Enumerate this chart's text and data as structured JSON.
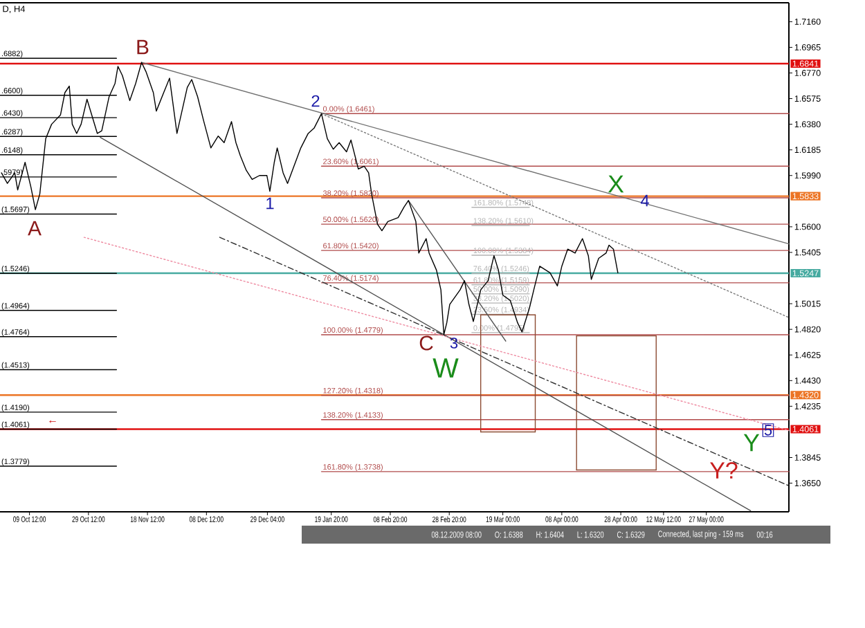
{
  "chart_data": {
    "type": "line",
    "title": "D, H4",
    "xlim": [
      "2009-09-29T12:00",
      "2010-06-24T00:00"
    ],
    "ylim": [
      1.3432,
      1.7304
    ],
    "xticks": [
      {
        "value": "2009-10-09T12:00",
        "label": "09 Oct 12:00"
      },
      {
        "value": "2009-10-29T12:00",
        "label": "29 Oct 12:00"
      },
      {
        "value": "2009-11-18T12:00",
        "label": "18 Nov 12:00"
      },
      {
        "value": "2009-12-08T12:00",
        "label": "08 Dec 12:00"
      },
      {
        "value": "2009-12-29T04:00",
        "label": "29 Dec 04:00"
      },
      {
        "value": "2010-01-19T20:00",
        "label": "19 Jan 20:00"
      },
      {
        "value": "2010-02-08T20:00",
        "label": "08 Feb 20:00"
      },
      {
        "value": "2010-02-28T20:00",
        "label": "28 Feb 20:00"
      },
      {
        "value": "2010-03-19T00:00",
        "label": "19 Mar 00:00"
      },
      {
        "value": "2010-04-08T00:00",
        "label": "08 Apr 00:00"
      },
      {
        "value": "2010-04-28T00:00",
        "label": "28 Apr 00:00"
      },
      {
        "value": "2010-05-12T12:00",
        "label": "12 May 12:00"
      },
      {
        "value": "2010-05-27T00:00",
        "label": "27 May 00:00"
      }
    ],
    "yticks": [
      {
        "value": 1.716,
        "label": "1.7160"
      },
      {
        "value": 1.6965,
        "label": "1.6965"
      },
      {
        "value": 1.677,
        "label": "1.6770"
      },
      {
        "value": 1.6575,
        "label": "1.6575"
      },
      {
        "value": 1.638,
        "label": "1.6380"
      },
      {
        "value": 1.6185,
        "label": "1.6185"
      },
      {
        "value": 1.599,
        "label": "1.5990"
      },
      {
        "value": 1.56,
        "label": "1.5600"
      },
      {
        "value": 1.5405,
        "label": "1.5405"
      },
      {
        "value": 1.5015,
        "label": "1.5015"
      },
      {
        "value": 1.482,
        "label": "1.4820"
      },
      {
        "value": 1.4625,
        "label": "1.4625"
      },
      {
        "value": 1.443,
        "label": "1.4430"
      },
      {
        "value": 1.4235,
        "label": "1.4235"
      },
      {
        "value": 1.3845,
        "label": "1.3845"
      },
      {
        "value": 1.365,
        "label": "1.3650"
      }
    ],
    "series": [
      {
        "name": "0.00% (1.6461)",
        "color": "#b04a4a",
        "x": [
          "2010-01-16T12:00",
          "2010-06-24T00:00"
        ],
        "values": [
          1.6461,
          1.6461
        ]
      },
      {
        "name": "23.60% (1.6061)",
        "color": "#b04a4a",
        "x": [
          "2010-01-16T12:00",
          "2010-06-24T00:00"
        ],
        "values": [
          1.6061,
          1.6061
        ]
      },
      {
        "name": "38.20% (1.5820)",
        "color": "#b04a4a",
        "x": [
          "2010-01-16T12:00",
          "2010-06-24T00:00"
        ],
        "values": [
          1.582,
          1.582
        ]
      },
      {
        "name": "50.00% (1.5620)",
        "color": "#b04a4a",
        "x": [
          "2010-01-16T12:00",
          "2010-06-24T00:00"
        ],
        "values": [
          1.562,
          1.562
        ]
      },
      {
        "name": "61.80% (1.5420)",
        "color": "#b04a4a",
        "x": [
          "2010-01-16T12:00",
          "2010-06-24T00:00"
        ],
        "values": [
          1.542,
          1.542
        ]
      },
      {
        "name": "76.40% (1.5174)",
        "color": "#b04a4a",
        "x": [
          "2010-01-16T12:00",
          "2010-06-24T00:00"
        ],
        "values": [
          1.5174,
          1.5174
        ]
      },
      {
        "name": "100.00% (1.4779)",
        "color": "#b04a4a",
        "x": [
          "2010-01-16T12:00",
          "2010-06-24T00:00"
        ],
        "values": [
          1.4779,
          1.4779
        ]
      },
      {
        "name": "127.20% (1.4318)",
        "color": "#b04a4a",
        "x": [
          "2010-01-16T12:00",
          "2010-06-24T00:00"
        ],
        "values": [
          1.4318,
          1.4318
        ]
      },
      {
        "name": "138.20% (1.4133)",
        "color": "#b04a4a",
        "x": [
          "2010-01-16T12:00",
          "2010-06-24T00:00"
        ],
        "values": [
          1.4133,
          1.4133
        ]
      },
      {
        "name": "161.80% (1.3738)",
        "color": "#b04a4a",
        "x": [
          "2010-01-16T12:00",
          "2010-06-24T00:00"
        ],
        "values": [
          1.3738,
          1.3738
        ]
      },
      {
        "name": ".6882)",
        "color": "#000000",
        "x": [
          "2009-09-29T12:00",
          "2009-11-08T00:00"
        ],
        "values": [
          1.6882,
          1.6882
        ]
      },
      {
        "name": ".6600)",
        "color": "#000000",
        "x": [
          "2009-09-29T12:00",
          "2009-11-08T00:00"
        ],
        "values": [
          1.66,
          1.66
        ]
      },
      {
        "name": ".6430)",
        "color": "#000000",
        "x": [
          "2009-09-29T12:00",
          "2009-11-08T00:00"
        ],
        "values": [
          1.643,
          1.643
        ]
      },
      {
        "name": ".6287)",
        "color": "#000000",
        "x": [
          "2009-09-29T12:00",
          "2009-11-08T00:00"
        ],
        "values": [
          1.6287,
          1.6287
        ]
      },
      {
        "name": ".6148)",
        "color": "#000000",
        "x": [
          "2009-09-29T12:00",
          "2009-11-08T00:00"
        ],
        "values": [
          1.6148,
          1.6148
        ]
      },
      {
        "name": ".5979)",
        "color": "#000000",
        "x": [
          "2009-09-29T12:00",
          "2009-11-08T00:00"
        ],
        "values": [
          1.5979,
          1.5979
        ]
      },
      {
        "name": "(1.5697)",
        "color": "#000000",
        "x": [
          "2009-09-29T12:00",
          "2009-11-08T00:00"
        ],
        "values": [
          1.5697,
          1.5697
        ]
      },
      {
        "name": "(1.5246)",
        "color": "#000000",
        "x": [
          "2009-09-29T12:00",
          "2009-11-08T00:00"
        ],
        "values": [
          1.5246,
          1.5246
        ]
      },
      {
        "name": "(1.4964)",
        "color": "#000000",
        "x": [
          "2009-09-29T12:00",
          "2009-11-08T00:00"
        ],
        "values": [
          1.4964,
          1.4964
        ]
      },
      {
        "name": "(1.4764)",
        "color": "#000000",
        "x": [
          "2009-09-29T12:00",
          "2009-11-08T00:00"
        ],
        "values": [
          1.4764,
          1.4764
        ]
      },
      {
        "name": "(1.4513)",
        "color": "#000000",
        "x": [
          "2009-09-29T12:00",
          "2009-11-08T00:00"
        ],
        "values": [
          1.4513,
          1.4513
        ]
      },
      {
        "name": "(1.4190)",
        "color": "#000000",
        "x": [
          "2009-09-29T12:00",
          "2009-11-08T00:00"
        ],
        "values": [
          1.419,
          1.419
        ]
      },
      {
        "name": "(1.4061)",
        "color": "#000000",
        "x": [
          "2009-09-29T12:00",
          "2009-11-08T00:00"
        ],
        "values": [
          1.4061,
          1.4061
        ]
      },
      {
        "name": "(1.3779)",
        "color": "#000000",
        "x": [
          "2009-09-29T12:00",
          "2009-11-08T00:00"
        ],
        "values": [
          1.3779,
          1.3779
        ]
      },
      {
        "name": "161.80% (1.5748)",
        "color": "#b4b4b4",
        "x": [
          "2010-03-08T12:00",
          "2010-03-28T00:00"
        ],
        "values": [
          1.5748,
          1.5748
        ]
      },
      {
        "name": "138.20% (1.5610)",
        "color": "#b4b4b4",
        "x": [
          "2010-03-08T12:00",
          "2010-03-28T00:00"
        ],
        "values": [
          1.561,
          1.561
        ]
      },
      {
        "name": "100.00% (1.5384)",
        "color": "#b4b4b4",
        "x": [
          "2010-03-08T12:00",
          "2010-03-28T00:00"
        ],
        "values": [
          1.5384,
          1.5384
        ]
      },
      {
        "name": "76.40% (1.5246)",
        "color": "#b4b4b4",
        "x": [
          "2010-03-08T12:00",
          "2010-03-28T00:00"
        ],
        "values": [
          1.5246,
          1.5246
        ]
      },
      {
        "name": "61.80% (1.5159)",
        "color": "#b4b4b4",
        "x": [
          "2010-03-08T12:00",
          "2010-03-28T00:00"
        ],
        "values": [
          1.5159,
          1.5159
        ]
      },
      {
        "name": "50.00% (1.5090)",
        "color": "#b4b4b4",
        "x": [
          "2010-03-08T12:00",
          "2010-03-28T00:00"
        ],
        "values": [
          1.509,
          1.509
        ]
      },
      {
        "name": "38.20% (1.5020)",
        "color": "#b4b4b4",
        "x": [
          "2010-03-08T12:00",
          "2010-03-28T00:00"
        ],
        "values": [
          1.502,
          1.502
        ]
      },
      {
        "name": "23.60% (1.4934)",
        "color": "#b4b4b4",
        "x": [
          "2010-03-08T12:00",
          "2010-03-28T00:00"
        ],
        "values": [
          1.4934,
          1.4934
        ]
      },
      {
        "name": "0.00% (1.4795)",
        "color": "#b4b4b4",
        "x": [
          "2010-03-08T12:00",
          "2010-03-28T00:00"
        ],
        "values": [
          1.4795,
          1.4795
        ]
      },
      {
        "color": "#8c4b32",
        "x": [
          "2010-03-11T12:00",
          "2010-03-30T00:00"
        ],
        "values": [
          1.493,
          1.493
        ]
      },
      {
        "color": "#8c4b32",
        "x": [
          "2010-03-11T12:00",
          "2010-03-30T00:00"
        ],
        "values": [
          1.404,
          1.404
        ]
      },
      {
        "color": "#8c4b32",
        "x": [
          "2010-03-11T12:00",
          "2010-03-11T12:00"
        ],
        "values": [
          1.493,
          1.404
        ]
      },
      {
        "color": "#8c4b32",
        "x": [
          "2010-03-30T00:00",
          "2010-03-30T00:00"
        ],
        "values": [
          1.493,
          1.404
        ]
      },
      {
        "color": "#8c4b32",
        "x": [
          "2010-04-13T00:00",
          "2010-05-10T00:00"
        ],
        "values": [
          1.477,
          1.477
        ]
      },
      {
        "color": "#8c4b32",
        "x": [
          "2010-04-13T00:00",
          "2010-05-10T00:00"
        ],
        "values": [
          1.375,
          1.375
        ]
      },
      {
        "color": "#8c4b32",
        "x": [
          "2010-04-13T00:00",
          "2010-04-13T00:00"
        ],
        "values": [
          1.477,
          1.375
        ]
      },
      {
        "color": "#8c4b32",
        "x": [
          "2010-05-10T00:00",
          "2010-05-10T00:00"
        ],
        "values": [
          1.477,
          1.375
        ]
      },
      {
        "color": "#707070",
        "x": [
          "2009-11-16T12:00",
          "2010-06-24T00:00"
        ],
        "values": [
          1.685,
          1.547
        ]
      },
      {
        "color": "#787878",
        "line_style": "dotted",
        "x": [
          "2010-01-16T12:00",
          "2010-06-24T00:00"
        ],
        "values": [
          1.646,
          1.491
        ]
      },
      {
        "color": "#505050",
        "x": [
          "2009-11-02T12:00",
          "2010-06-11T00:00"
        ],
        "values": [
          1.628,
          1.344
        ]
      },
      {
        "color": "#585858",
        "x": [
          "2010-02-15T00:00",
          "2010-03-20T00:00"
        ],
        "values": [
          1.58,
          1.473
        ]
      },
      {
        "color": "#303030",
        "line_style": "dashed",
        "x": [
          "2009-12-13T00:00",
          "2010-06-24T00:00"
        ],
        "values": [
          1.552,
          1.363
        ]
      },
      {
        "color": "#ee8aa0",
        "line_style": "dotted",
        "x": [
          "2009-10-28T00:00",
          "2010-06-24T00:00"
        ],
        "values": [
          1.552,
          1.405
        ]
      },
      {
        "color": "#000000",
        "x": [
          "2009-09-30T00:00",
          "2009-10-02T00:00",
          "2009-10-04T12:00",
          "2009-10-05T12:00",
          "2009-10-08T00:00",
          "2009-10-10T00:00",
          "2009-10-11T12:00",
          "2009-10-13T00:00",
          "2009-10-14T00:00",
          "2009-10-15T00:00",
          "2009-10-17T00:00",
          "2009-10-20T00:00",
          "2009-10-21T12:00",
          "2009-10-23T00:00",
          "2009-10-24T00:00",
          "2009-10-25T12:00",
          "2009-10-27T00:00",
          "2009-10-29T00:00",
          "2009-11-01T12:00",
          "2009-11-03T00:00",
          "2009-11-05T12:00",
          "2009-11-07T12:00",
          "2009-11-08T12:00",
          "2009-11-10T00:00",
          "2009-11-12T12:00",
          "2009-11-14T12:00",
          "2009-11-16T12:00",
          "2009-11-18T00:00",
          "2009-11-20T12:00",
          "2009-11-21T12:00",
          "2009-11-24T00:00",
          "2009-11-26T00:00",
          "2009-11-28T12:00",
          "2009-11-29T12:00",
          "2009-12-02T00:00",
          "2009-12-03T12:00",
          "2009-12-05T12:00",
          "2009-12-07T12:00",
          "2009-12-10T00:00",
          "2009-12-12T12:00",
          "2009-12-14T12:00",
          "2009-12-17T00:00",
          "2009-12-18T12:00",
          "2009-12-20T00:00",
          "2009-12-22T00:00",
          "2009-12-24T00:00",
          "2009-12-26T12:00",
          "2009-12-29T00:00",
          "2009-12-30T00:00",
          "2009-12-31T12:00",
          "2010-01-01T12:00",
          "2010-01-03T12:00",
          "2010-01-05T00:00",
          "2010-01-06T00:00",
          "2010-01-09T12:00",
          "2010-01-12T00:00",
          "2010-01-14T00:00",
          "2010-01-16T12:00",
          "2010-01-18T12:00",
          "2010-01-20T12:00",
          "2010-01-22T12:00",
          "2010-01-25T00:00",
          "2010-01-26T12:00",
          "2010-01-29T00:00",
          "2010-01-31T00:00",
          "2010-02-01T12:00",
          "2010-02-02T12:00",
          "2010-02-04T12:00",
          "2010-02-06T00:00",
          "2010-02-08T00:00",
          "2010-02-11T12:00",
          "2010-02-13T12:00",
          "2010-02-15T00:00",
          "2010-02-17T12:00",
          "2010-02-18T12:00",
          "2010-02-21T00:00",
          "2010-02-22T00:00",
          "2010-02-24T12:00",
          "2010-02-26T00:00",
          "2010-02-27T00:00",
          "2010-02-28T00:00",
          "2010-03-01T00:00",
          "2010-03-04T12:00",
          "2010-03-06T00:00",
          "2010-03-07T12:00",
          "2010-03-09T00:00",
          "2010-03-11T12:00",
          "2010-03-14T00:00",
          "2010-03-16T00:00",
          "2010-03-17T12:00",
          "2010-03-19T00:00",
          "2010-03-21T12:00",
          "2010-03-24T00:00",
          "2010-03-25T12:00",
          "2010-03-28T00:00",
          "2010-03-29T12:00",
          "2010-03-31T12:00",
          "2010-04-04T00:00",
          "2010-04-06T12:00",
          "2010-04-08T00:00",
          "2010-04-10T00:00",
          "2010-04-12T12:00",
          "2010-04-15T00:00",
          "2010-04-17T00:00",
          "2010-04-18T00:00",
          "2010-04-20T12:00",
          "2010-04-23T00:00",
          "2010-04-24T00:00",
          "2010-04-25T12:00",
          "2010-04-27T00:00"
        ],
        "values": [
          1.601,
          1.593,
          1.601,
          1.588,
          1.609,
          1.59,
          1.573,
          1.585,
          1.606,
          1.627,
          1.638,
          1.645,
          1.662,
          1.667,
          1.638,
          1.631,
          1.638,
          1.657,
          1.631,
          1.633,
          1.659,
          1.669,
          1.682,
          1.675,
          1.656,
          1.669,
          1.685,
          1.678,
          1.662,
          1.648,
          1.662,
          1.673,
          1.631,
          1.641,
          1.666,
          1.672,
          1.659,
          1.641,
          1.62,
          1.629,
          1.624,
          1.64,
          1.624,
          1.614,
          1.603,
          1.596,
          1.599,
          1.599,
          1.587,
          1.609,
          1.62,
          1.601,
          1.593,
          1.599,
          1.62,
          1.631,
          1.635,
          1.646,
          1.627,
          1.619,
          1.624,
          1.617,
          1.626,
          1.604,
          1.606,
          1.601,
          1.585,
          1.562,
          1.557,
          1.564,
          1.567,
          1.575,
          1.58,
          1.564,
          1.54,
          1.551,
          1.54,
          1.527,
          1.512,
          1.478,
          1.487,
          1.501,
          1.512,
          1.519,
          1.501,
          1.488,
          1.512,
          1.519,
          1.538,
          1.527,
          1.508,
          1.504,
          1.487,
          1.48,
          1.498,
          1.512,
          1.53,
          1.525,
          1.515,
          1.53,
          1.543,
          1.54,
          1.551,
          1.538,
          1.52,
          1.536,
          1.54,
          1.546,
          1.543,
          1.525
        ]
      }
    ],
    "ref_lines": [
      {
        "axis": "y",
        "value": 1.6841,
        "label": "1.6841",
        "color": "#e01010"
      },
      {
        "axis": "y",
        "value": 1.5833,
        "label": "1.5833",
        "color": "#ec7424"
      },
      {
        "axis": "y",
        "value": 1.5247,
        "label": "1.5247",
        "color": "#46aaa0"
      },
      {
        "axis": "y",
        "value": 1.432,
        "label": "1.4320",
        "color": "#ec7424"
      },
      {
        "axis": "y",
        "value": 1.4061,
        "label": "1.4061",
        "color": "#e01010"
      }
    ],
    "annotations": [
      "A",
      "B",
      "1",
      "2",
      "C",
      "3",
      "W",
      "X",
      "4",
      "Y?",
      "Y",
      "5",
      "←",
      "08.12.2009 08:00",
      "O: 1.6388",
      "H: 1.6404",
      "L: 1.6320",
      "C: 1.6329",
      "Connected, last ping - 159 ms",
      "00:16"
    ]
  }
}
